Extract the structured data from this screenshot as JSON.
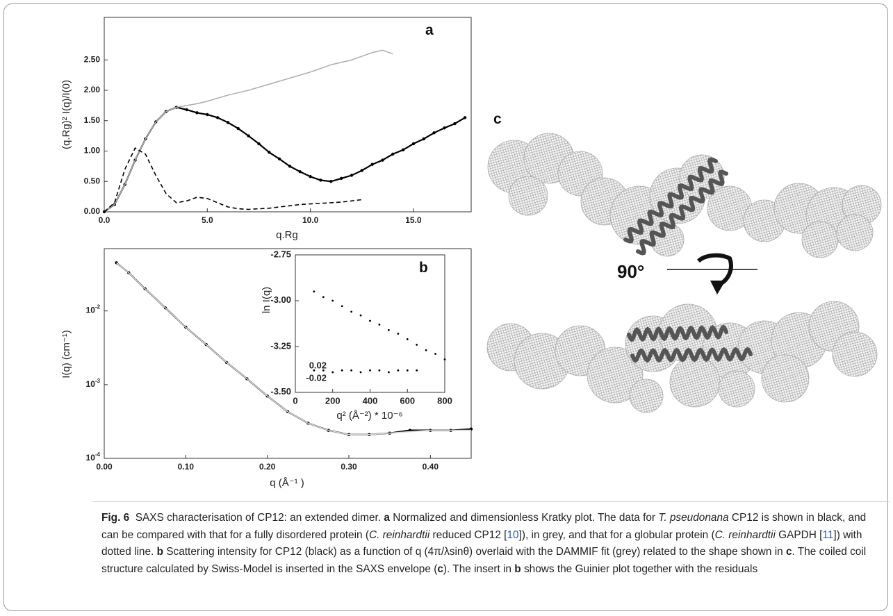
{
  "chart_data": [
    {
      "type": "line",
      "panel_label": "a",
      "xlabel": "q.Rg",
      "ylabel": "(q.Rg)² I(q)/I(0)",
      "x": [
        0,
        0.5,
        1,
        1.5,
        2,
        2.5,
        3,
        3.5,
        4,
        4.5,
        5,
        5.5,
        6,
        6.5,
        7,
        7.5,
        8,
        8.5,
        9,
        9.5,
        10,
        10.5,
        11,
        11.5,
        12,
        12.5,
        13,
        13.5,
        14,
        14.5,
        15,
        15.5,
        16,
        16.5,
        17,
        17.5
      ],
      "xlim": [
        0,
        17.8
      ],
      "xticks": [
        {
          "value": 0,
          "label": "0.0"
        },
        {
          "value": 5,
          "label": "5.0"
        },
        {
          "value": 10,
          "label": "10.0"
        },
        {
          "value": 15,
          "label": "15.0"
        }
      ],
      "ylim": [
        0,
        3.2
      ],
      "yticks": [
        {
          "value": 0,
          "label": "0.00"
        },
        {
          "value": 0.5,
          "label": "0.50"
        },
        {
          "value": 1,
          "label": "1.00"
        },
        {
          "value": 1.5,
          "label": "1.50"
        },
        {
          "value": 2,
          "label": "2.00"
        },
        {
          "value": 2.5,
          "label": "2.50"
        }
      ],
      "series": [
        {
          "color": "#000000",
          "style": "dots-line",
          "values": [
            0,
            0.12,
            0.45,
            0.85,
            1.2,
            1.48,
            1.65,
            1.72,
            1.68,
            1.63,
            1.6,
            1.55,
            1.47,
            1.37,
            1.25,
            1.12,
            0.98,
            0.87,
            0.75,
            0.66,
            0.58,
            0.52,
            0.5,
            0.55,
            0.6,
            0.68,
            0.78,
            0.85,
            0.95,
            1.02,
            1.12,
            1.2,
            1.3,
            1.38,
            1.45,
            1.55
          ]
        },
        {
          "color": "#b0b0b0",
          "style": "line",
          "values": [
            0,
            0.12,
            0.45,
            0.85,
            1.2,
            1.48,
            1.65,
            1.72,
            1.75,
            1.78,
            1.82,
            1.87,
            1.92,
            1.96,
            2.0,
            2.05,
            2.1,
            2.15,
            2.2,
            2.25,
            2.3,
            2.36,
            2.42,
            2.46,
            2.5,
            2.56,
            2.62,
            2.66,
            2.6,
            null,
            null,
            null,
            null,
            null,
            null,
            null
          ]
        },
        {
          "color": "#000000",
          "style": "dashed",
          "values": [
            0,
            0.15,
            0.7,
            1.05,
            0.95,
            0.6,
            0.3,
            0.15,
            0.18,
            0.24,
            0.22,
            0.15,
            0.08,
            0.05,
            0.04,
            0.05,
            0.06,
            0.08,
            0.1,
            0.12,
            0.13,
            0.14,
            0.15,
            0.16,
            0.18,
            0.2,
            null,
            null,
            null,
            null,
            null,
            null,
            null,
            null,
            null,
            null
          ]
        }
      ]
    },
    {
      "type": "line",
      "yscale": "log",
      "xlabel": "q (Å⁻¹ )",
      "ylabel": "I(q)  (cm⁻¹)",
      "x": [
        0.015,
        0.03,
        0.05,
        0.075,
        0.1,
        0.125,
        0.15,
        0.175,
        0.2,
        0.225,
        0.25,
        0.275,
        0.3,
        0.325,
        0.35,
        0.375,
        0.4,
        0.425,
        0.45
      ],
      "xlim": [
        0,
        0.45
      ],
      "xticks": [
        {
          "value": 0,
          "label": "0.00"
        },
        {
          "value": 0.1,
          "label": "0.10"
        },
        {
          "value": 0.2,
          "label": "0.20"
        },
        {
          "value": 0.3,
          "label": "0.30"
        },
        {
          "value": 0.4,
          "label": "0.40"
        }
      ],
      "ylim": [
        0.0001,
        0.07
      ],
      "yticks": [
        {
          "value": 0.0001,
          "label": "10",
          "exponent": "-4"
        },
        {
          "value": 0.001,
          "label": "10",
          "exponent": "-3"
        },
        {
          "value": 0.01,
          "label": "10",
          "exponent": "-2"
        }
      ],
      "series": [
        {
          "color": "#000000",
          "style": "dots-line",
          "values": [
            0.045,
            0.033,
            0.02,
            0.011,
            0.006,
            0.0035,
            0.002,
            0.0012,
            0.0007,
            0.00043,
            0.0003,
            0.00024,
            0.00021,
            0.00021,
            0.00022,
            0.00024,
            0.00024,
            0.00024,
            0.00025
          ]
        },
        {
          "color": "#d8d8d8",
          "style": "line",
          "values": [
            0.045,
            0.033,
            0.02,
            0.011,
            0.006,
            0.0035,
            0.002,
            0.0012,
            0.0007,
            0.00043,
            0.0003,
            0.00024,
            0.00021,
            0.00021,
            0.00022,
            0.00023,
            0.00024,
            0.00024,
            0.00024
          ]
        }
      ]
    },
    {
      "type": "line",
      "panel_label": "b",
      "xlabel": "q² (Å⁻²) * 10⁻⁶",
      "ylabel": "ln I(q)",
      "x": [
        100,
        150,
        200,
        250,
        300,
        350,
        400,
        450,
        500,
        550,
        600,
        650,
        700,
        750,
        800
      ],
      "xlim": [
        0,
        800
      ],
      "xticks": [
        0,
        200,
        400,
        600,
        800
      ],
      "ylim": [
        -3.5,
        -2.75
      ],
      "yticks": [
        -2.75,
        {
          "value": -3,
          "label": "-3.00"
        },
        -3.25,
        {
          "value": -3.5,
          "label": "-3.50"
        }
      ],
      "annotations": [
        "0.02",
        "-0.02"
      ],
      "series": [
        {
          "color": "#000000",
          "style": "dots",
          "values": [
            -2.95,
            -2.98,
            -3.0,
            -3.03,
            -3.06,
            -3.08,
            -3.11,
            -3.13,
            -3.16,
            -3.18,
            -3.21,
            -3.24,
            -3.27,
            -3.29,
            -3.32
          ]
        },
        {
          "color": "#000000",
          "style": "dots",
          "values": [
            -3.38,
            -3.38,
            -3.39,
            -3.38,
            -3.38,
            -3.39,
            -3.38,
            -3.38,
            -3.39,
            -3.38,
            -3.38,
            -3.38,
            null,
            null,
            null
          ]
        }
      ]
    }
  ],
  "panel_c": {
    "label": "c",
    "rotation": "90°"
  },
  "caption": [
    {
      "text": "Fig. 6",
      "style": "bold"
    },
    {
      "text": "  SAXS characterisation of CP12: an extended dimer. ",
      "style": "normal"
    },
    {
      "text": "a",
      "style": "bold"
    },
    {
      "text": " Normalized and dimensionless Kratky plot. The data for ",
      "style": "normal"
    },
    {
      "text": "T. pseudonana",
      "style": "italic"
    },
    {
      "text": " CP12 is shown in black, and can be compared with that for a fully disordered protein (",
      "style": "normal"
    },
    {
      "text": "C. reinhardtii",
      "style": "italic"
    },
    {
      "text": " reduced CP12 [",
      "style": "normal"
    },
    {
      "text": "10",
      "style": "link"
    },
    {
      "text": "]), in grey, and that for a globular protein (",
      "style": "normal"
    },
    {
      "text": "C. reinhardtii",
      "style": "italic"
    },
    {
      "text": " GAPDH [",
      "style": "normal"
    },
    {
      "text": "11",
      "style": "link"
    },
    {
      "text": "]) with dotted line. ",
      "style": "normal"
    },
    {
      "text": "b",
      "style": "bold"
    },
    {
      "text": " Scattering intensity for CP12 (black) as a function of q (4π/λsinθ) overlaid with the DAMMIF fit (grey) related to the shape shown in ",
      "style": "normal"
    },
    {
      "text": "c",
      "style": "bold"
    },
    {
      "text": ". The coiled coil structure calculated by Swiss-Model is inserted in the SAXS envelope (",
      "style": "normal"
    },
    {
      "text": "c",
      "style": "bold"
    },
    {
      "text": "). The insert in ",
      "style": "normal"
    },
    {
      "text": "b",
      "style": "bold"
    },
    {
      "text": " shows the Guinier plot together with the residuals",
      "style": "normal"
    }
  ]
}
